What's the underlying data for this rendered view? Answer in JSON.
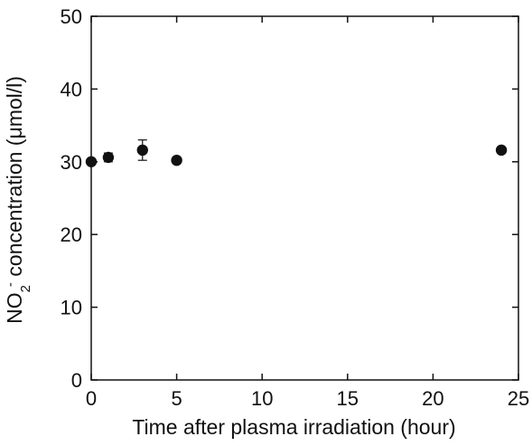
{
  "chart_data": {
    "type": "scatter",
    "xlabel": "Time after plasma irradiation (hour)",
    "ylabel": {
      "prefix": "NO",
      "subscript": "2",
      "superscript": "-",
      "suffix": " concentration (μmol/l)"
    },
    "xlim": [
      0,
      25
    ],
    "ylim": [
      0,
      50
    ],
    "x_ticks": [
      0,
      5,
      10,
      15,
      20,
      25
    ],
    "y_ticks": [
      0,
      10,
      20,
      30,
      40,
      50
    ],
    "grid": false,
    "legend": "none",
    "series": [
      {
        "points": [
          {
            "x": 0,
            "y": 30.0,
            "err": 0.3
          },
          {
            "x": 1,
            "y": 30.6,
            "err": 0.6
          },
          {
            "x": 3,
            "y": 31.6,
            "err": 1.4
          },
          {
            "x": 5,
            "y": 30.2,
            "err": 0.3
          },
          {
            "x": 24,
            "y": 31.6,
            "err": 0.4
          }
        ],
        "color": "#111111"
      }
    ]
  }
}
